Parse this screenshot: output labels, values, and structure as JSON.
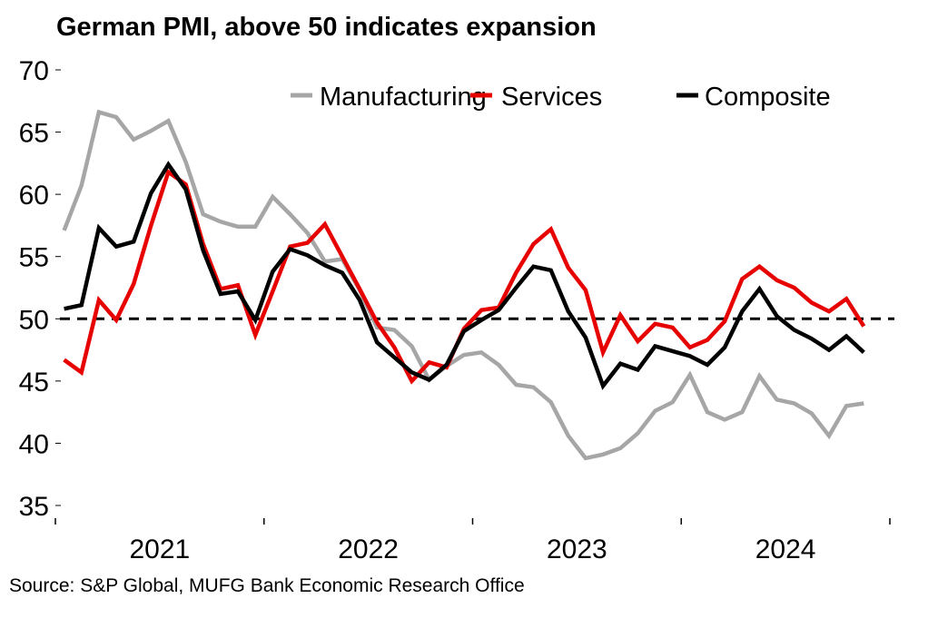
{
  "chart_data": {
    "type": "line",
    "title": "German PMI, above 50 indicates expansion",
    "source": "Source: S&P Global, MUFG Bank Economic Research Office",
    "xlabel": "",
    "ylabel": "",
    "ylim": [
      35,
      70
    ],
    "yticks": [
      35,
      40,
      45,
      50,
      55,
      60,
      65,
      70
    ],
    "xtick_labels": [
      "2021",
      "2022",
      "2023",
      "2024"
    ],
    "x_start": "2021-01",
    "x_frequency": "monthly",
    "x_count": 47,
    "reference_line": {
      "value": 50,
      "style": "dashed",
      "color": "#000000"
    },
    "grid": false,
    "legend_position": "top-right",
    "series": [
      {
        "name": "Manufacturing",
        "color": "#a6a6a6",
        "values": [
          57.1,
          60.7,
          66.6,
          66.2,
          64.4,
          65.1,
          65.9,
          62.6,
          58.4,
          57.8,
          57.4,
          57.4,
          59.8,
          58.4,
          56.9,
          54.6,
          54.8,
          52.3,
          49.3,
          49.1,
          47.8,
          45.1,
          46.2,
          47.1,
          47.3,
          46.3,
          44.7,
          44.5,
          43.3,
          40.6,
          38.8,
          39.1,
          39.6,
          40.8,
          42.6,
          43.3,
          45.5,
          42.5,
          41.9,
          42.5,
          45.4,
          43.5,
          43.2,
          42.4,
          40.6,
          43.0,
          43.2
        ]
      },
      {
        "name": "Services",
        "color": "#e60000",
        "values": [
          46.7,
          45.7,
          51.5,
          49.9,
          52.8,
          57.5,
          61.8,
          60.8,
          56.0,
          52.4,
          52.7,
          48.7,
          52.2,
          55.8,
          56.1,
          57.6,
          55.0,
          52.4,
          49.7,
          47.7,
          45.0,
          46.5,
          46.1,
          49.2,
          50.7,
          50.9,
          53.7,
          56.0,
          57.2,
          54.1,
          52.3,
          47.3,
          50.3,
          48.2,
          49.6,
          49.3,
          47.7,
          48.3,
          49.8,
          53.2,
          54.2,
          53.1,
          52.5,
          51.3,
          50.6,
          51.6,
          49.4
        ]
      },
      {
        "name": "Composite",
        "color": "#000000",
        "values": [
          50.8,
          51.1,
          57.3,
          55.8,
          56.2,
          60.1,
          62.4,
          60.4,
          55.5,
          52.0,
          52.2,
          49.9,
          53.8,
          55.6,
          55.1,
          54.3,
          53.7,
          51.5,
          48.1,
          46.9,
          45.7,
          45.1,
          46.3,
          49.0,
          49.9,
          50.7,
          52.5,
          54.2,
          53.9,
          50.6,
          48.5,
          44.6,
          46.4,
          45.9,
          47.8,
          47.4,
          47.0,
          46.3,
          47.7,
          50.6,
          52.4,
          50.2,
          49.1,
          48.4,
          47.5,
          48.6,
          47.3
        ]
      }
    ]
  }
}
